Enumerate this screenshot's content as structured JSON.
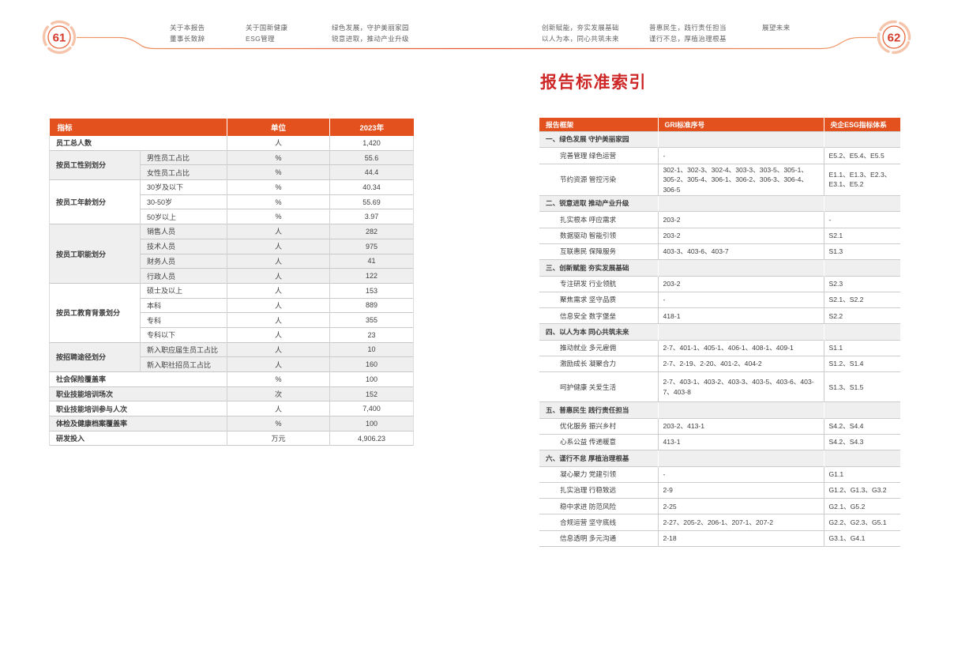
{
  "page": {
    "left_number": "61",
    "right_number": "62"
  },
  "nav": {
    "groups": [
      {
        "line1": "关于本报告",
        "line2": "董事长致辞"
      },
      {
        "line1": "关于国新健康",
        "line2": "ESG管理"
      },
      {
        "line1": "绿色发展，守护美丽家园",
        "line2": "锐意进取，推动产业升级"
      },
      {
        "line1": "创新赋能，夯实发展基础",
        "line2": "以人为本，同心共筑未来"
      },
      {
        "line1": "普惠民生，践行责任担当",
        "line2": "谨行不怠，厚植治理根基"
      },
      {
        "line1": "展望未来",
        "line2": ""
      }
    ]
  },
  "employee_table": {
    "headers": {
      "indicator": "指标",
      "unit": "单位",
      "year": "2023年"
    },
    "rows": [
      {
        "indicator": "员工总人数",
        "unit": "人",
        "value": "1,420",
        "shade": false
      },
      {
        "group": "按员工性别划分",
        "span": 2,
        "sub": "男性员工占比",
        "unit": "%",
        "value": "55.6",
        "shade": true
      },
      {
        "sub": "女性员工占比",
        "unit": "%",
        "value": "44.4",
        "shade": true
      },
      {
        "group": "按员工年龄划分",
        "span": 3,
        "sub": "30岁及以下",
        "unit": "%",
        "value": "40.34",
        "shade": false
      },
      {
        "sub": "30-50岁",
        "unit": "%",
        "value": "55.69",
        "shade": false
      },
      {
        "sub": "50岁以上",
        "unit": "%",
        "value": "3.97",
        "shade": false
      },
      {
        "group": "按员工职能划分",
        "span": 4,
        "sub": "销售人员",
        "unit": "人",
        "value": "282",
        "shade": true
      },
      {
        "sub": "技术人员",
        "unit": "人",
        "value": "975",
        "shade": true
      },
      {
        "sub": "财务人员",
        "unit": "人",
        "value": "41",
        "shade": true
      },
      {
        "sub": "行政人员",
        "unit": "人",
        "value": "122",
        "shade": true
      },
      {
        "group": "按员工教育背景划分",
        "span": 4,
        "sub": "硕士及以上",
        "unit": "人",
        "value": "153",
        "shade": false
      },
      {
        "sub": "本科",
        "unit": "人",
        "value": "889",
        "shade": false
      },
      {
        "sub": "专科",
        "unit": "人",
        "value": "355",
        "shade": false
      },
      {
        "sub": "专科以下",
        "unit": "人",
        "value": "23",
        "shade": false
      },
      {
        "group": "按招聘途径划分",
        "span": 2,
        "sub": "新入职应届生员工占比",
        "unit": "人",
        "value": "10",
        "shade": true
      },
      {
        "sub": "新入职社招员工占比",
        "unit": "人",
        "value": "160",
        "shade": true
      },
      {
        "indicator": "社会保险覆盖率",
        "unit": "%",
        "value": "100",
        "shade": false
      },
      {
        "indicator": "职业技能培训场次",
        "unit": "次",
        "value": "152",
        "shade": true
      },
      {
        "indicator": "职业技能培训参与人次",
        "unit": "人",
        "value": "7,400",
        "shade": false
      },
      {
        "indicator": "体检及健康档案覆盖率",
        "unit": "%",
        "value": "100",
        "shade": true
      },
      {
        "indicator": "研发投入",
        "unit": "万元",
        "value": "4,906.23",
        "shade": false
      }
    ]
  },
  "index_section": {
    "title": "报告标准索引",
    "headers": {
      "framework": "报告框架",
      "gri": "GRI标准序号",
      "esg": "央企ESG指标体系"
    },
    "rows": [
      {
        "type": "section",
        "framework": "一、绿色发展 守护美丽家园"
      },
      {
        "type": "detail",
        "framework": "完善管理 绿色运营",
        "gri": "-",
        "esg": "E5.2、E5.4、E5.5"
      },
      {
        "type": "detail",
        "tall": true,
        "framework": "节约资源 管控污染",
        "gri": "302-1、302-3、302-4、303-3、303-5、305-1、305-2、305-4、306-1、306-2、306-3、306-4、306-5",
        "esg": "E1.1、E1.3、E2.3、E3.1、E5.2"
      },
      {
        "type": "section",
        "framework": "二、锐意进取 推动产业升级"
      },
      {
        "type": "detail",
        "framework": "扎实根本 呼应需求",
        "gri": "203-2",
        "esg": "-"
      },
      {
        "type": "detail",
        "framework": "数据驱动 智能引领",
        "gri": "203-2",
        "esg": "S2.1"
      },
      {
        "type": "detail",
        "framework": "互联惠民 保障服务",
        "gri": "403-3、403-6、403-7",
        "esg": "S1.3"
      },
      {
        "type": "section",
        "framework": "三、创新赋能 夯实发展基础"
      },
      {
        "type": "detail",
        "framework": "专注研发 行业领航",
        "gri": "203-2",
        "esg": "S2.3"
      },
      {
        "type": "detail",
        "framework": "聚焦需求 坚守品质",
        "gri": "-",
        "esg": "S2.1、S2.2"
      },
      {
        "type": "detail",
        "framework": "信息安全 数字堡垒",
        "gri": "418-1",
        "esg": "S2.2"
      },
      {
        "type": "section",
        "framework": "四、以人为本 同心共筑未来"
      },
      {
        "type": "detail",
        "framework": "推动就业 多元雇佣",
        "gri": "2-7、401-1、405-1、406-1、408-1、409-1",
        "esg": "S1.1"
      },
      {
        "type": "detail",
        "framework": "激励成长 凝聚合力",
        "gri": "2-7、2-19、2-20、401-2、404-2",
        "esg": "S1.2、S1.4"
      },
      {
        "type": "detail",
        "tall": true,
        "framework": "呵护健康 关爱生活",
        "gri": "2-7、403-1、403-2、403-3、403-5、403-6、403-7、403-8",
        "esg": "S1.3、S1.5"
      },
      {
        "type": "section",
        "framework": "五、普惠民生 践行责任担当"
      },
      {
        "type": "detail",
        "framework": "优化服务 振兴乡村",
        "gri": "203-2、413-1",
        "esg": "S4.2、S4.4"
      },
      {
        "type": "detail",
        "framework": "心系公益 传递暖意",
        "gri": "413-1",
        "esg": "S4.2、S4.3"
      },
      {
        "type": "section",
        "framework": "六、谨行不怠 厚植治理根基"
      },
      {
        "type": "detail",
        "framework": "凝心聚力 党建引领",
        "gri": "-",
        "esg": "G1.1"
      },
      {
        "type": "detail",
        "framework": "扎实治理 行稳致远",
        "gri": "2-9",
        "esg": "G1.2、G1.3、G3.2"
      },
      {
        "type": "detail",
        "framework": "稳中求进 防范风险",
        "gri": "2-25",
        "esg": "G2.1、G5.2"
      },
      {
        "type": "detail",
        "framework": "合规运营 坚守底线",
        "gri": "2-27、205-2、206-1、207-1、207-2",
        "esg": "G2.2、G2.3、G5.1"
      },
      {
        "type": "detail",
        "framework": "信息透明 多元沟通",
        "gri": "2-18",
        "esg": "G3.1、G4.1"
      }
    ]
  },
  "colors": {
    "table_header_bg": "#e2511e",
    "title_red": "#ce2727",
    "page_number_red": "#d43a2a",
    "ring_outer": "#f5c4aa",
    "ring_inner": "#e8663c",
    "row_shade": "#efefef",
    "deco_line": "#e5562e",
    "nav_text": "#636363"
  }
}
